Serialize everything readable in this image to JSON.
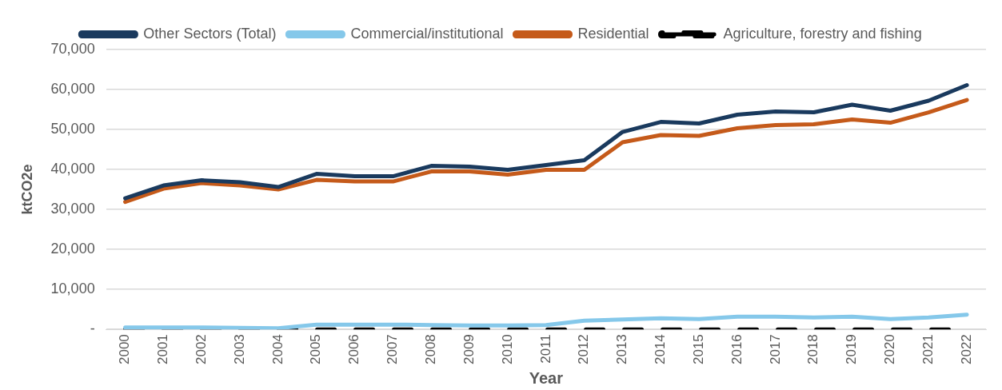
{
  "chart_data": {
    "type": "line",
    "xlabel": "Year",
    "ylabel": "ktCO2e",
    "categories": [
      "2000",
      "2001",
      "2002",
      "2003",
      "2004",
      "2005",
      "2006",
      "2007",
      "2008",
      "2009",
      "2010",
      "2011",
      "2012",
      "2013",
      "2014",
      "2015",
      "2016",
      "2017",
      "2018",
      "2019",
      "2020",
      "2021",
      "2022"
    ],
    "series": [
      {
        "name": "Other Sectors (Total)",
        "color": "#1a3a5e",
        "values": [
          32800,
          36000,
          37300,
          36800,
          35600,
          38900,
          38300,
          38300,
          40900,
          40700,
          39900,
          41100,
          42300,
          49400,
          51900,
          51500,
          53700,
          54500,
          54300,
          56200,
          54700,
          57200,
          61100
        ]
      },
      {
        "name": "Commercial/institutional",
        "color": "#85c8ea",
        "values": [
          500,
          500,
          500,
          400,
          300,
          1200,
          1200,
          1200,
          1100,
          1000,
          1000,
          1100,
          2200,
          2500,
          2800,
          2600,
          3200,
          3200,
          3000,
          3200,
          2600,
          3000,
          3700
        ]
      },
      {
        "name": "Residential",
        "color": "#c55a1a",
        "values": [
          31900,
          35200,
          36600,
          36000,
          35000,
          37400,
          37000,
          37000,
          39500,
          39500,
          38700,
          39900,
          39900,
          46800,
          48600,
          48400,
          50300,
          51100,
          51300,
          52500,
          51700,
          54300,
          57400
        ]
      },
      {
        "name": "Agriculture, forestry and fishing",
        "color": "#000000",
        "line_style": "dashed",
        "values": [
          0,
          0,
          0,
          0,
          0,
          0,
          0,
          0,
          0,
          0,
          0,
          0,
          0,
          0,
          0,
          0,
          0,
          0,
          0,
          0,
          0,
          0,
          0
        ]
      }
    ],
    "ylim": [
      0,
      70000
    ],
    "yticks": [
      {
        "value": 0,
        "label": "-"
      },
      {
        "value": 10000,
        "label": "10,000"
      },
      {
        "value": 20000,
        "label": "20,000"
      },
      {
        "value": 30000,
        "label": "30,000"
      },
      {
        "value": 40000,
        "label": "40,000"
      },
      {
        "value": 50000,
        "label": "50,000"
      },
      {
        "value": 60000,
        "label": "60,000"
      },
      {
        "value": 70000,
        "label": "70,000"
      }
    ],
    "grid": "y",
    "legend": "top",
    "marker": "none"
  }
}
